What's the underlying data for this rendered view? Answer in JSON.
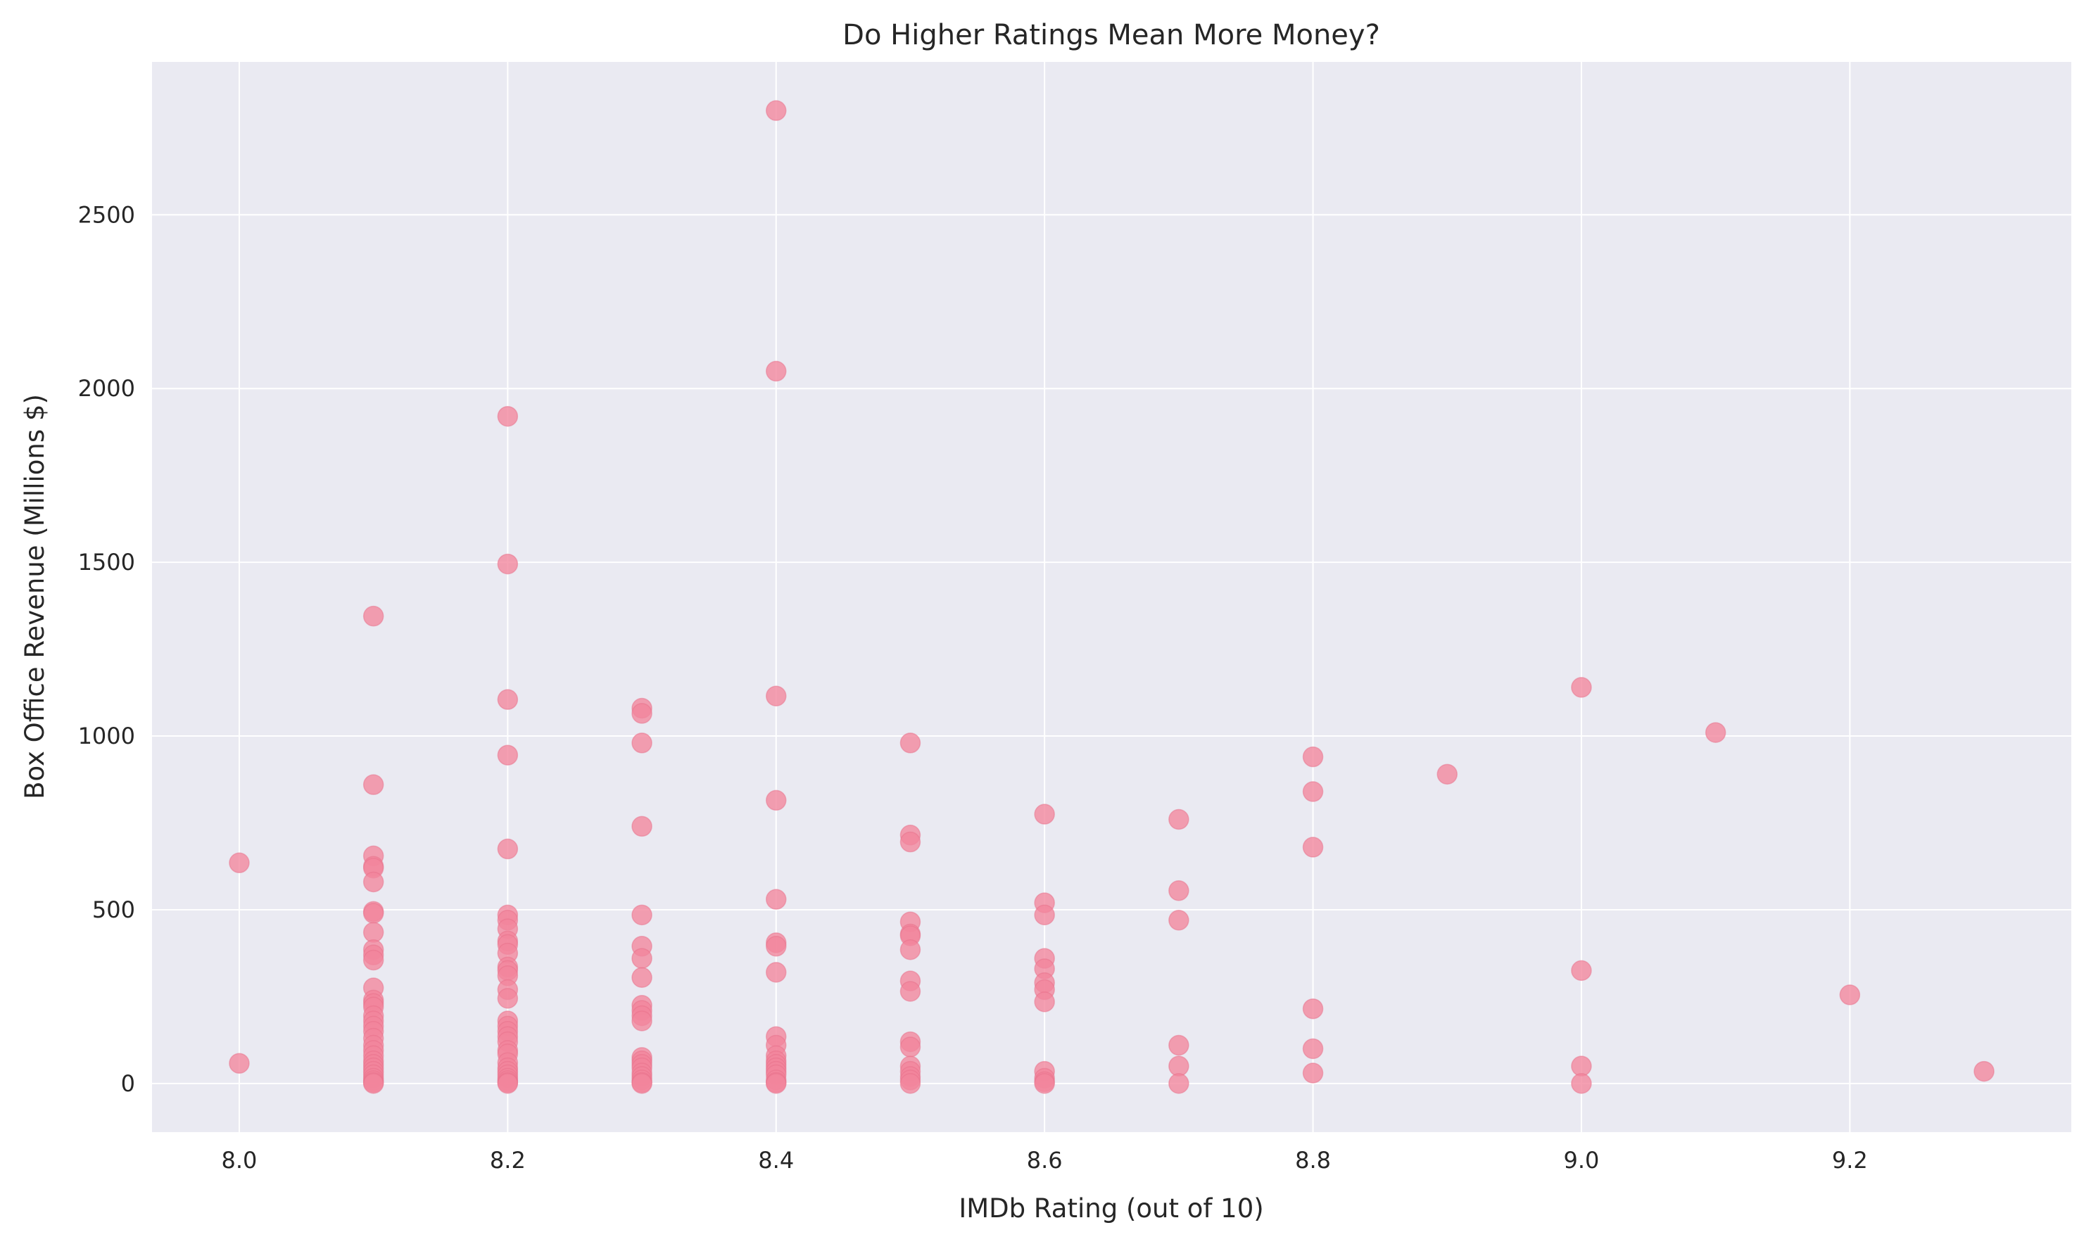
{
  "chart_data": {
    "type": "scatter",
    "title": "Do Higher Ratings Mean More Money?",
    "xlabel": "IMDb Rating (out of 10)",
    "ylabel": "Box Office Revenue (Millions $)",
    "xlim": [
      7.935,
      9.365
    ],
    "ylim": [
      -140,
      2940
    ],
    "xticks": [
      "8.0",
      "8.2",
      "8.4",
      "8.6",
      "8.8",
      "9.0",
      "9.2"
    ],
    "yticks": [
      "0",
      "500",
      "1000",
      "1500",
      "2000",
      "2500"
    ],
    "grid": true,
    "colors": {
      "point": "#f2859c",
      "plot_background": "#eaeaf2",
      "grid": "#ffffff"
    },
    "points": [
      [
        8.0,
        635
      ],
      [
        8.0,
        58
      ],
      [
        8.1,
        1345
      ],
      [
        8.1,
        860
      ],
      [
        8.1,
        655
      ],
      [
        8.1,
        625
      ],
      [
        8.1,
        620
      ],
      [
        8.1,
        580
      ],
      [
        8.1,
        495
      ],
      [
        8.1,
        490
      ],
      [
        8.1,
        435
      ],
      [
        8.1,
        385
      ],
      [
        8.1,
        370
      ],
      [
        8.1,
        355
      ],
      [
        8.1,
        275
      ],
      [
        8.1,
        240
      ],
      [
        8.1,
        230
      ],
      [
        8.1,
        220
      ],
      [
        8.1,
        195
      ],
      [
        8.1,
        180
      ],
      [
        8.1,
        165
      ],
      [
        8.1,
        150
      ],
      [
        8.1,
        130
      ],
      [
        8.1,
        110
      ],
      [
        8.1,
        95
      ],
      [
        8.1,
        80
      ],
      [
        8.1,
        65
      ],
      [
        8.1,
        55
      ],
      [
        8.1,
        45
      ],
      [
        8.1,
        35
      ],
      [
        8.1,
        25
      ],
      [
        8.1,
        15
      ],
      [
        8.1,
        8
      ],
      [
        8.1,
        3
      ],
      [
        8.1,
        0
      ],
      [
        8.2,
        1920
      ],
      [
        8.2,
        1495
      ],
      [
        8.2,
        1105
      ],
      [
        8.2,
        945
      ],
      [
        8.2,
        675
      ],
      [
        8.2,
        485
      ],
      [
        8.2,
        470
      ],
      [
        8.2,
        445
      ],
      [
        8.2,
        410
      ],
      [
        8.2,
        400
      ],
      [
        8.2,
        375
      ],
      [
        8.2,
        335
      ],
      [
        8.2,
        325
      ],
      [
        8.2,
        310
      ],
      [
        8.2,
        270
      ],
      [
        8.2,
        245
      ],
      [
        8.2,
        180
      ],
      [
        8.2,
        165
      ],
      [
        8.2,
        150
      ],
      [
        8.2,
        135
      ],
      [
        8.2,
        120
      ],
      [
        8.2,
        95
      ],
      [
        8.2,
        85
      ],
      [
        8.2,
        60
      ],
      [
        8.2,
        45
      ],
      [
        8.2,
        35
      ],
      [
        8.2,
        25
      ],
      [
        8.2,
        15
      ],
      [
        8.2,
        8
      ],
      [
        8.2,
        3
      ],
      [
        8.2,
        0
      ],
      [
        8.3,
        1080
      ],
      [
        8.3,
        1065
      ],
      [
        8.3,
        980
      ],
      [
        8.3,
        740
      ],
      [
        8.3,
        485
      ],
      [
        8.3,
        395
      ],
      [
        8.3,
        360
      ],
      [
        8.3,
        305
      ],
      [
        8.3,
        225
      ],
      [
        8.3,
        210
      ],
      [
        8.3,
        195
      ],
      [
        8.3,
        180
      ],
      [
        8.3,
        75
      ],
      [
        8.3,
        65
      ],
      [
        8.3,
        55
      ],
      [
        8.3,
        45
      ],
      [
        8.3,
        30
      ],
      [
        8.3,
        20
      ],
      [
        8.3,
        10
      ],
      [
        8.3,
        3
      ],
      [
        8.3,
        0
      ],
      [
        8.4,
        2800
      ],
      [
        8.4,
        2050
      ],
      [
        8.4,
        1115
      ],
      [
        8.4,
        815
      ],
      [
        8.4,
        530
      ],
      [
        8.4,
        405
      ],
      [
        8.4,
        395
      ],
      [
        8.4,
        320
      ],
      [
        8.4,
        135
      ],
      [
        8.4,
        110
      ],
      [
        8.4,
        80
      ],
      [
        8.4,
        65
      ],
      [
        8.4,
        55
      ],
      [
        8.4,
        45
      ],
      [
        8.4,
        35
      ],
      [
        8.4,
        25
      ],
      [
        8.4,
        10
      ],
      [
        8.4,
        3
      ],
      [
        8.4,
        0
      ],
      [
        8.5,
        980
      ],
      [
        8.5,
        715
      ],
      [
        8.5,
        695
      ],
      [
        8.5,
        465
      ],
      [
        8.5,
        430
      ],
      [
        8.5,
        425
      ],
      [
        8.5,
        385
      ],
      [
        8.5,
        295
      ],
      [
        8.5,
        265
      ],
      [
        8.5,
        120
      ],
      [
        8.5,
        105
      ],
      [
        8.5,
        50
      ],
      [
        8.5,
        35
      ],
      [
        8.5,
        20
      ],
      [
        8.5,
        10
      ],
      [
        8.5,
        0
      ],
      [
        8.6,
        775
      ],
      [
        8.6,
        520
      ],
      [
        8.6,
        485
      ],
      [
        8.6,
        360
      ],
      [
        8.6,
        330
      ],
      [
        8.6,
        290
      ],
      [
        8.6,
        270
      ],
      [
        8.6,
        235
      ],
      [
        8.6,
        35
      ],
      [
        8.6,
        15
      ],
      [
        8.6,
        5
      ],
      [
        8.6,
        0
      ],
      [
        8.7,
        760
      ],
      [
        8.7,
        555
      ],
      [
        8.7,
        470
      ],
      [
        8.7,
        110
      ],
      [
        8.7,
        50
      ],
      [
        8.7,
        0
      ],
      [
        8.8,
        940
      ],
      [
        8.8,
        840
      ],
      [
        8.8,
        680
      ],
      [
        8.8,
        215
      ],
      [
        8.8,
        100
      ],
      [
        8.8,
        30
      ],
      [
        8.9,
        890
      ],
      [
        9.0,
        1140
      ],
      [
        9.0,
        325
      ],
      [
        9.0,
        50
      ],
      [
        9.0,
        0
      ],
      [
        9.1,
        1010
      ],
      [
        9.2,
        255
      ],
      [
        9.3,
        35
      ]
    ]
  }
}
